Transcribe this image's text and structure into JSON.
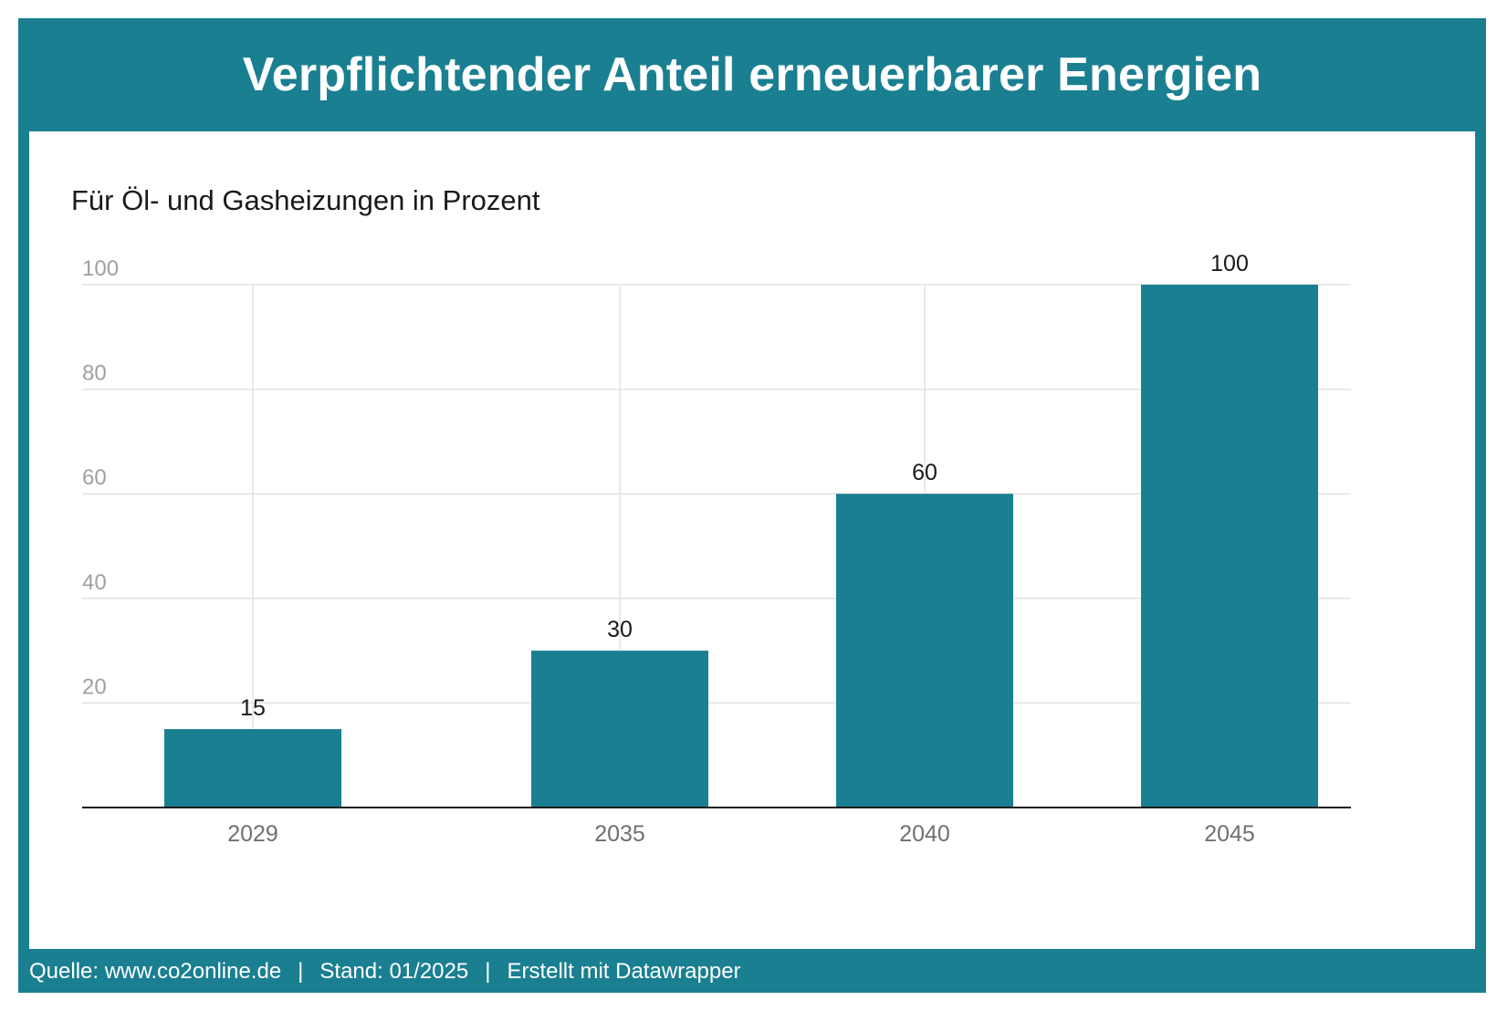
{
  "title": "Verpflichtender Anteil erneuerbarer Energien",
  "subtitle": "Für Öl- und Gasheizungen in Prozent",
  "footer": {
    "source": "Quelle: www.co2online.de",
    "date": "Stand: 01/2025",
    "credit": "Erstellt mit Datawrapper",
    "separator": "|"
  },
  "colors": {
    "accent": "#1a7f91",
    "bar": "#1a7f91",
    "grid": "#e3e3e3",
    "tick_label": "#a0a0a0",
    "category_label": "#707070",
    "value_label": "#1a1a1a",
    "baseline": "#1a1a1a"
  },
  "chart_data": {
    "type": "bar",
    "categories": [
      "2029",
      "2035",
      "2040",
      "2045"
    ],
    "values": [
      15,
      30,
      60,
      100
    ],
    "x": [
      2029,
      2035,
      2040,
      2045
    ],
    "yticks": [
      20,
      40,
      60,
      80,
      100
    ],
    "ylim": [
      0,
      100
    ],
    "grid": true,
    "title": "Verpflichtender Anteil erneuerbarer Energien",
    "subtitle": "Für Öl- und Gasheizungen in Prozent"
  }
}
